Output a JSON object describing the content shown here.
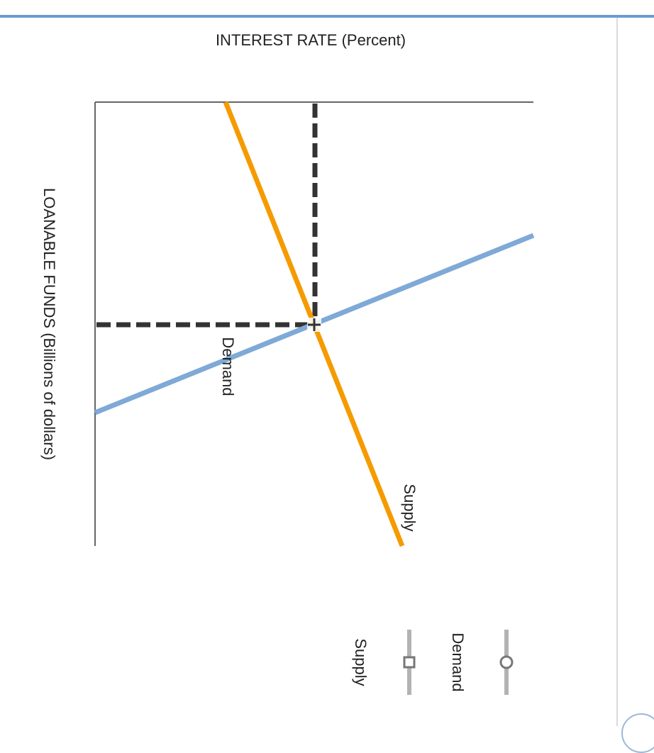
{
  "chart_data": {
    "type": "line",
    "x_axis_label": "INTEREST RATE (Percent)",
    "y_axis_label": "LOANABLE FUNDS (Billions of dollars)",
    "series": [
      {
        "name": "Supply",
        "color": "#7fa9d6",
        "points": [
          [
            0,
            0.2
          ],
          [
            1,
            0.7
          ]
        ]
      },
      {
        "name": "Demand",
        "color": "#f59b00",
        "points": [
          [
            0.3,
            1
          ],
          [
            0.7,
            0
          ]
        ]
      }
    ],
    "equilibrium": {
      "color": "#333333",
      "style": "dashed"
    },
    "curve_labels": {
      "demand": "Demand",
      "supply": "Supply"
    },
    "legend": [
      {
        "name": "Demand",
        "marker": "circle",
        "color": "#888888"
      },
      {
        "name": "Supply",
        "marker": "square",
        "color": "#888888"
      }
    ],
    "ticks": "none",
    "grid": false
  }
}
